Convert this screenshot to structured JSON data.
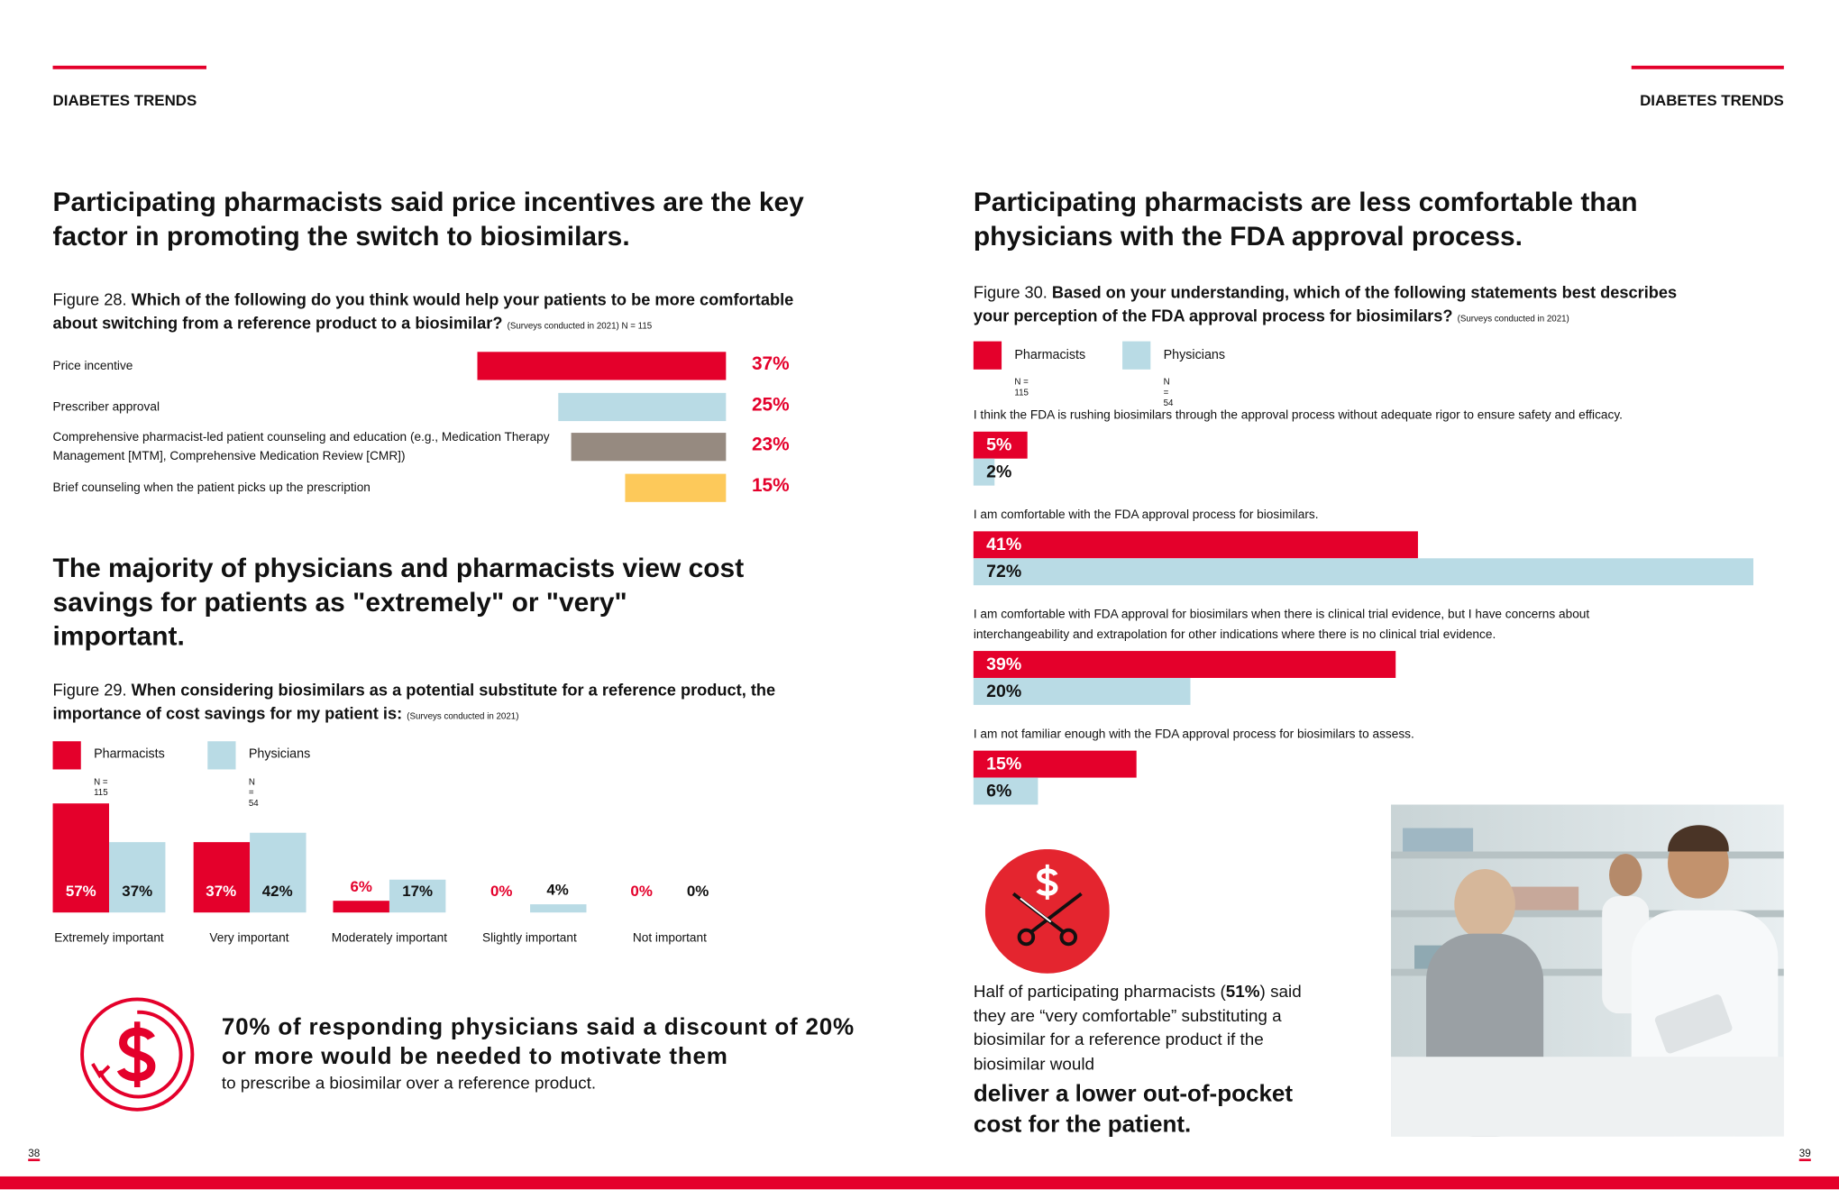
{
  "header": {
    "left": "DIABETES TRENDS",
    "right": "DIABETES TRENDS"
  },
  "left_page": {
    "headline1": "Participating pharmacists said price incentives are the key factor in promoting the switch to biosimilars.",
    "headline2": "The majority of physicians and pharmacists view cost savings for patients as \"extremely\" or \"very\" important.",
    "callout": {
      "bold": "70% of responding physicians said a discount of 20% or more would be needed to motivate them",
      "text": "to prescribe a biosimilar over a reference product."
    },
    "page_number": "38"
  },
  "right_page": {
    "headline": "Participating pharmacists are less comfortable than physicians with the FDA approval process.",
    "quote": {
      "before": "Half of participating pharmacists (",
      "highlight": "51%",
      "after": ") said they are “very comfortable” substituting a biosimilar for a reference product if the biosimilar would",
      "bold": "deliver a lower out-of-pocket cost for the patient."
    },
    "page_number": "39"
  },
  "chart_data": [
    {
      "type": "hbar",
      "figure": "Figure 28.",
      "title": "Which of the following do you think would help your patients to be more comfortable about switching from a reference product to a biosimilar?",
      "note": "(Surveys conducted in 2021) N = 115",
      "categories": [
        "Price incentive",
        "Prescriber approval",
        "Comprehensive pharmacist-led patient counseling and education (e.g., Medication Therapy Management [MTM], Comprehensive Medication Review [CMR])",
        "Brief counseling when the patient picks up the prescription"
      ],
      "values": [
        37,
        25,
        23,
        15
      ],
      "value_labels": [
        "37%",
        "25%",
        "23%",
        "15%"
      ],
      "colors": [
        "#e4002b",
        "#b9dbe5",
        "#968a80",
        "#fdc95a"
      ]
    },
    {
      "type": "grouped_bar",
      "figure": "Figure 29.",
      "title": "When considering biosimilars as a potential substitute for a reference product, the importance of cost savings for my patient is:",
      "note": "(Surveys conducted in 2021)",
      "categories": [
        "Extremely important",
        "Very important",
        "Moderately important",
        "Slightly important",
        "Not important"
      ],
      "series": [
        {
          "name": "Pharmacists",
          "n_label": "N = 115",
          "color": "#e4002b",
          "values": [
            57,
            37,
            6,
            0,
            0
          ],
          "value_labels": [
            "57%",
            "37%",
            "6%",
            "0%",
            "0%"
          ]
        },
        {
          "name": "Physicians",
          "n_label": "N = 54",
          "color": "#b9dbe5",
          "values": [
            37,
            42,
            17,
            4,
            0
          ],
          "value_labels": [
            "37%",
            "42%",
            "17%",
            "4%",
            "0%"
          ]
        }
      ]
    },
    {
      "type": "grouped_hbar",
      "figure": "Figure 30.",
      "title": "Based on your understanding, which of the following statements best describes your perception of the FDA approval process for biosimilars?",
      "note": "(Surveys conducted in 2021)",
      "categories": [
        "I think the FDA is rushing biosimilars through the approval process without adequate rigor to ensure safety and efficacy.",
        "I am comfortable with the FDA approval process for biosimilars.",
        "I am comfortable with FDA approval for biosimilars when there is clinical trial evidence, but I have concerns about interchangeability and extrapolation for other indications where there is no clinical trial evidence.",
        "I am not familiar enough with the FDA approval process for biosimilars to assess."
      ],
      "series": [
        {
          "name": "Pharmacists",
          "n_label": "N = 115",
          "color": "#e4002b",
          "values": [
            5,
            41,
            39,
            15
          ],
          "value_labels": [
            "5%",
            "41%",
            "39%",
            "15%"
          ]
        },
        {
          "name": "Physicians",
          "n_label": "N = 54",
          "color": "#b9dbe5",
          "values": [
            2,
            72,
            20,
            6
          ],
          "value_labels": [
            "2%",
            "72%",
            "20%",
            "6%"
          ]
        }
      ]
    }
  ]
}
